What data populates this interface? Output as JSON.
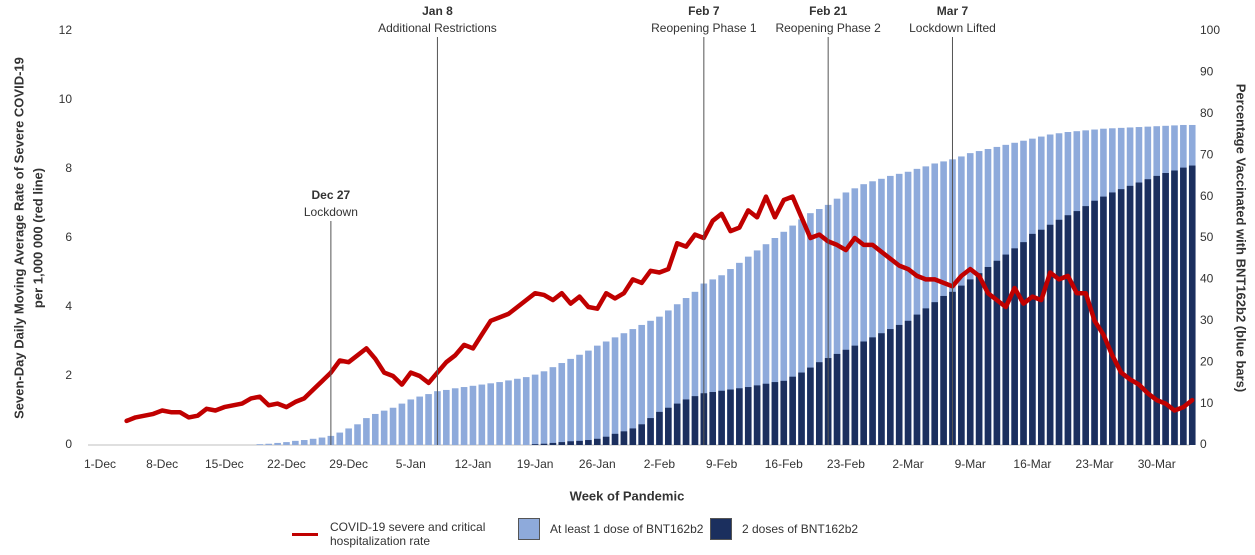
{
  "chart_data": {
    "type": "combo",
    "xlabel": "Week of Pandemic",
    "ylabel": [
      "Seven-Day Daily Moving Average Rate of Severe COVID-19",
      "per 1,000 000 (red line)"
    ],
    "y2label": "Percentage Vaccinated with BNT162b2 (blue bars)",
    "categories": [
      "1-Dec",
      null,
      null,
      null,
      null,
      null,
      null,
      "8-Dec",
      null,
      null,
      null,
      null,
      null,
      null,
      "15-Dec",
      null,
      null,
      null,
      null,
      null,
      null,
      "22-Dec",
      null,
      null,
      null,
      null,
      null,
      null,
      "29-Dec",
      null,
      null,
      null,
      null,
      null,
      null,
      "5-Jan",
      null,
      null,
      null,
      null,
      null,
      null,
      "12-Jan",
      null,
      null,
      null,
      null,
      null,
      null,
      "19-Jan",
      null,
      null,
      null,
      null,
      null,
      null,
      "26-Jan",
      null,
      null,
      null,
      null,
      null,
      null,
      "2-Feb",
      null,
      null,
      null,
      null,
      null,
      null,
      "9-Feb",
      null,
      null,
      null,
      null,
      null,
      null,
      "16-Feb",
      null,
      null,
      null,
      null,
      null,
      null,
      "23-Feb",
      null,
      null,
      null,
      null,
      null,
      null,
      "2-Mar",
      null,
      null,
      null,
      null,
      null,
      null,
      "9-Mar",
      null,
      null,
      null,
      null,
      null,
      null,
      "16-Mar",
      null,
      null,
      null,
      null,
      null,
      null,
      "23-Mar",
      null,
      null,
      null,
      null,
      null,
      null,
      "30-Mar",
      null,
      null,
      null,
      null
    ],
    "ylim": [
      0,
      12
    ],
    "yticks": [
      0,
      2,
      4,
      6,
      8,
      10,
      12
    ],
    "y2lim": [
      0,
      100
    ],
    "y2ticks": [
      0,
      10,
      20,
      30,
      40,
      50,
      60,
      70,
      80,
      90,
      100
    ],
    "series": [
      {
        "name": "At least 1 dose of BNT162b2",
        "type": "bar",
        "axis": "y2",
        "color": "#8eaadb",
        "values": [
          0,
          0,
          0,
          0,
          0,
          0,
          0,
          0,
          0,
          0,
          0,
          0,
          0,
          0,
          0,
          0,
          0,
          0,
          0.2,
          0.3,
          0.5,
          0.7,
          1.0,
          1.2,
          1.5,
          1.8,
          2.2,
          3.0,
          4.0,
          5.0,
          6.5,
          7.5,
          8.3,
          9.0,
          10.0,
          11.0,
          11.7,
          12.3,
          13.0,
          13.3,
          13.7,
          14.0,
          14.3,
          14.6,
          14.9,
          15.2,
          15.6,
          16.0,
          16.4,
          17.0,
          17.8,
          18.8,
          19.8,
          20.8,
          21.8,
          22.8,
          24.0,
          25.0,
          26.0,
          27.0,
          28.0,
          29.0,
          30.0,
          31.0,
          32.5,
          34.0,
          35.5,
          37.0,
          39.0,
          40.0,
          41.0,
          42.5,
          44.0,
          45.5,
          47.0,
          48.5,
          50.0,
          51.5,
          53.0,
          54.5,
          56.0,
          57.0,
          58.0,
          59.5,
          61.0,
          62.0,
          63.0,
          63.7,
          64.3,
          65.0,
          65.5,
          66.0,
          66.7,
          67.3,
          68.0,
          68.5,
          69.0,
          69.7,
          70.5,
          71.0,
          71.5,
          72.0,
          72.5,
          73.0,
          73.5,
          74.0,
          74.5,
          75.0,
          75.3,
          75.6,
          75.8,
          76.0,
          76.2,
          76.4,
          76.5,
          76.6,
          76.7,
          76.8,
          76.9,
          77.0,
          77.1,
          77.2,
          77.3,
          77.3
        ]
      },
      {
        "name": "2 doses of BNT162b2",
        "type": "bar",
        "axis": "y2",
        "color": "#1b2f5e",
        "values": [
          0,
          0,
          0,
          0,
          0,
          0,
          0,
          0,
          0,
          0,
          0,
          0,
          0,
          0,
          0,
          0,
          0,
          0,
          0,
          0,
          0,
          0,
          0,
          0,
          0,
          0,
          0,
          0,
          0,
          0,
          0,
          0,
          0,
          0,
          0,
          0,
          0,
          0,
          0,
          0,
          0,
          0,
          0,
          0,
          0,
          0,
          0,
          0,
          0,
          0.2,
          0.3,
          0.5,
          0.7,
          0.9,
          1.0,
          1.2,
          1.5,
          2.0,
          2.7,
          3.3,
          4.0,
          5.0,
          6.5,
          8.0,
          9.0,
          10.0,
          11.0,
          11.8,
          12.5,
          12.8,
          13.1,
          13.4,
          13.7,
          14.0,
          14.4,
          14.8,
          15.2,
          15.5,
          16.5,
          17.5,
          18.7,
          20.0,
          21.0,
          22.0,
          23.0,
          24.0,
          25.0,
          26.0,
          27.0,
          28.0,
          29.0,
          30.0,
          31.5,
          33.0,
          34.5,
          36.0,
          37.0,
          38.5,
          40.0,
          41.5,
          43.0,
          44.5,
          46.0,
          47.5,
          49.0,
          51.0,
          52.0,
          53.2,
          54.4,
          55.5,
          56.5,
          57.7,
          59.0,
          60.0,
          61.0,
          61.8,
          62.6,
          63.4,
          64.2,
          65.0,
          65.7,
          66.3,
          67.0,
          67.5
        ]
      },
      {
        "name": "COVID-19 severe and critical hospitalization rate",
        "type": "line",
        "axis": "y",
        "color": "#c00000",
        "values": [
          null,
          null,
          null,
          0.7,
          0.8,
          0.85,
          0.9,
          1.0,
          0.95,
          0.95,
          0.8,
          0.85,
          1.05,
          1.0,
          1.1,
          1.15,
          1.2,
          1.35,
          1.4,
          1.15,
          1.2,
          1.1,
          1.25,
          1.35,
          1.6,
          1.85,
          2.1,
          2.45,
          2.4,
          2.6,
          2.8,
          2.5,
          2.1,
          2.0,
          1.75,
          2.1,
          2.0,
          1.8,
          2.1,
          2.4,
          2.6,
          2.9,
          2.8,
          3.2,
          3.6,
          3.7,
          3.8,
          4.0,
          4.2,
          4.4,
          4.35,
          4.2,
          4.4,
          4.1,
          4.3,
          4.0,
          3.95,
          4.4,
          4.25,
          4.4,
          4.8,
          4.7,
          5.05,
          5.0,
          5.1,
          5.85,
          5.75,
          6.1,
          6.0,
          6.5,
          6.7,
          6.2,
          6.3,
          6.8,
          6.6,
          7.2,
          6.6,
          7.1,
          7.2,
          6.6,
          6.0,
          6.1,
          5.9,
          5.8,
          5.65,
          6.0,
          5.8,
          5.8,
          5.6,
          5.4,
          5.2,
          5.1,
          4.9,
          4.8,
          4.8,
          4.7,
          4.6,
          4.9,
          5.1,
          4.9,
          4.4,
          4.2,
          4.0,
          4.55,
          4.1,
          4.3,
          4.2,
          5.0,
          4.8,
          4.9,
          4.4,
          4.4,
          3.6,
          3.2,
          2.6,
          2.1,
          1.9,
          1.75,
          1.5,
          1.3,
          1.2,
          1.0,
          1.1,
          1.3
        ]
      }
    ],
    "annotations": [
      {
        "x": 26,
        "date": "Dec 27",
        "text": "Lockdown"
      },
      {
        "x": 38,
        "date": "Jan 8",
        "text": "Additional Restrictions"
      },
      {
        "x": 68,
        "date": "Feb 7",
        "text": "Reopening Phase 1"
      },
      {
        "x": 82,
        "date": "Feb 21",
        "text": "Reopening Phase 2"
      },
      {
        "x": 96,
        "date": "Mar 7",
        "text": "Lockdown Lifted"
      }
    ]
  }
}
